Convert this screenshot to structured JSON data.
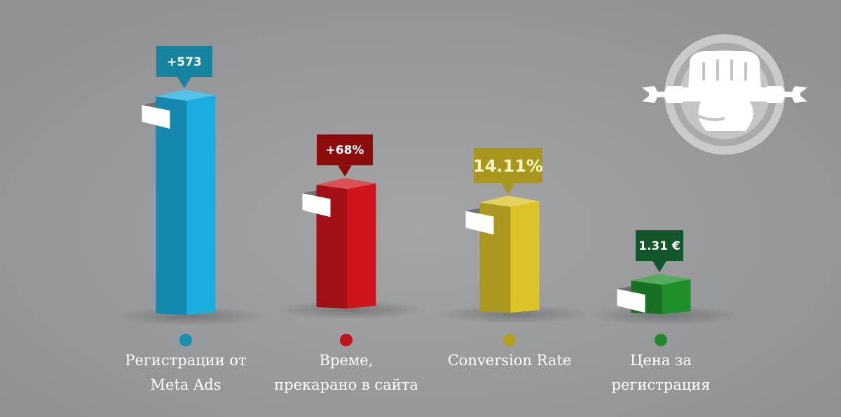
{
  "chart_data": {
    "type": "bar",
    "categories": [
      [
        "Регистрации от",
        "Meta Ads"
      ],
      [
        "Време,",
        "прекарано в сайта"
      ],
      [
        "Conversion Rate"
      ],
      [
        "Цена за",
        "регистрация"
      ]
    ],
    "value_labels": [
      "+573",
      "+68%",
      "14.11%",
      "1.31 €"
    ],
    "relative_height": [
      1.0,
      0.58,
      0.52,
      0.18
    ],
    "colors": [
      "#1aaee0",
      "#d0141b",
      "#dcc328",
      "#1f8f2c"
    ],
    "callout_colors": [
      "#16849e",
      "#8c0b0b",
      "#a9961c",
      "#11572a"
    ]
  },
  "logo": {
    "icon": "fist-wrench-icon"
  }
}
